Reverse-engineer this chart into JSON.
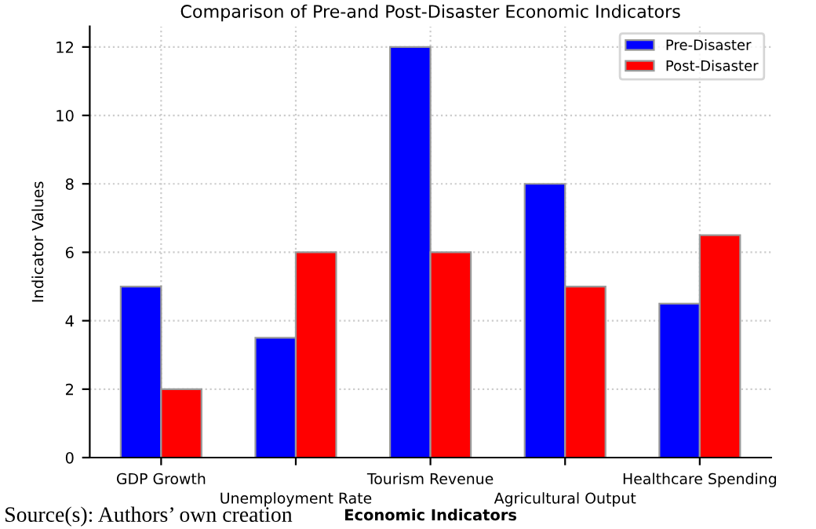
{
  "chart_data": {
    "type": "bar",
    "title": "Comparison of Pre-and Post-Disaster Economic Indicators",
    "xlabel": "Economic Indicators",
    "ylabel": "Indicator Values",
    "categories": [
      "GDP Growth",
      "Unemployment Rate",
      "Tourism Revenue",
      "Agricultural Output",
      "Healthcare Spending"
    ],
    "series": [
      {
        "name": "Pre-Disaster",
        "color": "#0000ff",
        "values": [
          5,
          3.5,
          12,
          8,
          4.5
        ]
      },
      {
        "name": "Post-Disaster",
        "color": "#ff0000",
        "values": [
          2,
          6,
          6,
          5,
          6.5
        ]
      }
    ],
    "ylim": [
      0,
      12.6
    ],
    "yticks": [
      0,
      2,
      4,
      6,
      8,
      10,
      12
    ],
    "grid": true,
    "legend": "top right",
    "annotations": [
      "Source(s): Authors’ own creation"
    ]
  }
}
